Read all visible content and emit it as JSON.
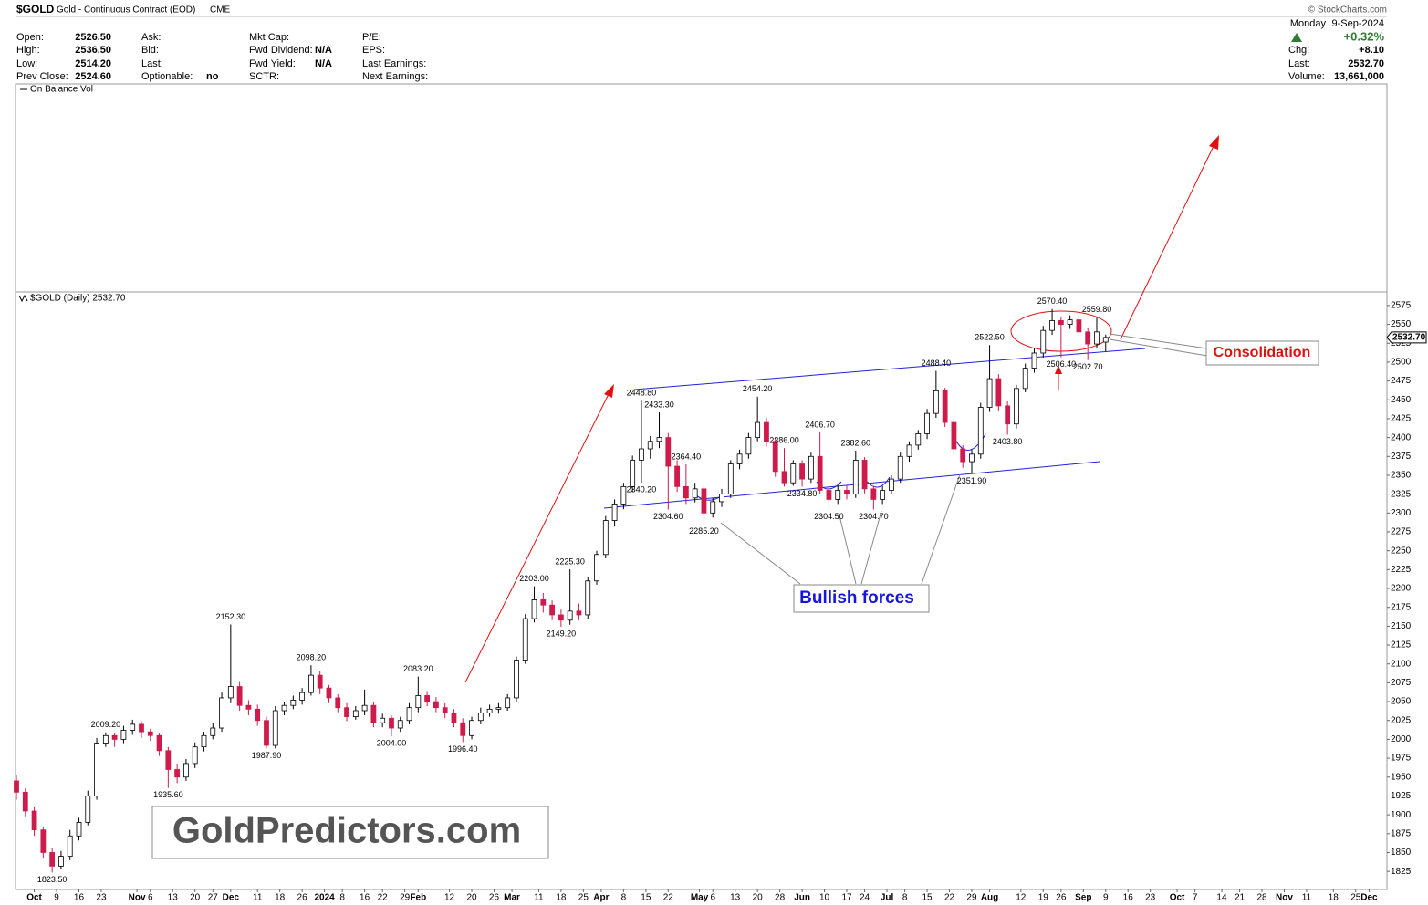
{
  "header": {
    "symbol": "$GOLD",
    "name": "Gold - Continuous Contract (EOD)",
    "exchange": "CME",
    "credit": "© StockCharts.com",
    "day": "Monday",
    "date": "9-Sep-2024",
    "change_pct": "+0.32%",
    "columns": [
      [
        {
          "label": "Open:",
          "value": "2526.50"
        },
        {
          "label": "High:",
          "value": "2536.50"
        },
        {
          "label": "Low:",
          "value": "2514.20"
        },
        {
          "label": "Prev Close:",
          "value": "2524.60"
        }
      ],
      [
        {
          "label": "Ask:"
        },
        {
          "label": "Bid:"
        },
        {
          "label": "Last:"
        },
        {
          "label": "Optionable:",
          "value": "no"
        }
      ],
      [
        {
          "label": "Mkt Cap:"
        },
        {
          "label": "Fwd Dividend:",
          "value": "N/A"
        },
        {
          "label": "Fwd Yield:",
          "value": "N/A"
        },
        {
          "label": "SCTR:"
        }
      ],
      [
        {
          "label": "P/E:"
        },
        {
          "label": "EPS:"
        },
        {
          "label": "Last Earnings:"
        },
        {
          "label": "Next Earnings:"
        }
      ]
    ],
    "right_fields": [
      {
        "label": "Chg:",
        "value": "+8.10"
      },
      {
        "label": "Last:",
        "value": "2532.70"
      },
      {
        "label": "Volume:",
        "value": "13,661,000"
      }
    ],
    "indicator": "On Balance Vol"
  },
  "chart_data": {
    "type": "candlestick",
    "series_label": "$GOLD (Daily) 2532.70",
    "last_price": {
      "value": 2532.7,
      "label": "2532.70"
    },
    "up_color": "#ffffff",
    "down_color": "#cf1b4c",
    "outline_color": "#000000",
    "grid": false,
    "xlim": [
      0,
      307
    ],
    "ylim": [
      1801,
      2593
    ],
    "yticks": [
      1825,
      1850,
      1875,
      1900,
      1925,
      1950,
      1975,
      2000,
      2025,
      2050,
      2075,
      2100,
      2125,
      2150,
      2175,
      2200,
      2225,
      2250,
      2275,
      2300,
      2325,
      2350,
      2375,
      2400,
      2425,
      2450,
      2475,
      2500,
      2525,
      2550,
      2575
    ],
    "xticks": [
      {
        "value": 4,
        "label": "Oct"
      },
      {
        "value": 9,
        "label": "9"
      },
      {
        "value": 14,
        "label": "16"
      },
      {
        "value": 19,
        "label": "23"
      },
      {
        "value": 27,
        "label": "Nov"
      },
      {
        "value": 30,
        "label": "6"
      },
      {
        "value": 35,
        "label": "13"
      },
      {
        "value": 40,
        "label": "20"
      },
      {
        "value": 44,
        "label": "27"
      },
      {
        "value": 48,
        "label": "Dec"
      },
      {
        "value": 54,
        "label": "11"
      },
      {
        "value": 59,
        "label": "18"
      },
      {
        "value": 64,
        "label": "26"
      },
      {
        "value": 69,
        "label": "2024"
      },
      {
        "value": 73,
        "label": "8"
      },
      {
        "value": 78,
        "label": "16"
      },
      {
        "value": 82,
        "label": "22"
      },
      {
        "value": 87,
        "label": "29"
      },
      {
        "value": 90,
        "label": "Feb"
      },
      {
        "value": 97,
        "label": "12"
      },
      {
        "value": 102,
        "label": "20"
      },
      {
        "value": 107,
        "label": "26"
      },
      {
        "value": 111,
        "label": "Mar"
      },
      {
        "value": 117,
        "label": "11"
      },
      {
        "value": 122,
        "label": "18"
      },
      {
        "value": 127,
        "label": "25"
      },
      {
        "value": 131,
        "label": "Apr"
      },
      {
        "value": 136,
        "label": "8"
      },
      {
        "value": 141,
        "label": "15"
      },
      {
        "value": 146,
        "label": "22"
      },
      {
        "value": 153,
        "label": "May"
      },
      {
        "value": 156,
        "label": "6"
      },
      {
        "value": 161,
        "label": "13"
      },
      {
        "value": 166,
        "label": "20"
      },
      {
        "value": 171,
        "label": "28"
      },
      {
        "value": 176,
        "label": "Jun"
      },
      {
        "value": 181,
        "label": "10"
      },
      {
        "value": 186,
        "label": "17"
      },
      {
        "value": 190,
        "label": "24"
      },
      {
        "value": 195,
        "label": "Jul"
      },
      {
        "value": 199,
        "label": "8"
      },
      {
        "value": 204,
        "label": "15"
      },
      {
        "value": 209,
        "label": "22"
      },
      {
        "value": 214,
        "label": "29"
      },
      {
        "value": 218,
        "label": "Aug"
      },
      {
        "value": 225,
        "label": "12"
      },
      {
        "value": 230,
        "label": "19"
      },
      {
        "value": 234,
        "label": "26"
      },
      {
        "value": 239,
        "label": "Sep"
      },
      {
        "value": 244,
        "label": "9"
      },
      {
        "value": 249,
        "label": "16"
      },
      {
        "value": 254,
        "label": "23"
      },
      {
        "value": 260,
        "label": "Oct"
      },
      {
        "value": 264,
        "label": "7"
      },
      {
        "value": 270,
        "label": "14"
      },
      {
        "value": 274,
        "label": "21"
      },
      {
        "value": 279,
        "label": "28"
      },
      {
        "value": 284,
        "label": "Nov"
      },
      {
        "value": 289,
        "label": "11"
      },
      {
        "value": 295,
        "label": "18"
      },
      {
        "value": 300,
        "label": "25"
      },
      {
        "value": 303,
        "label": "Dec"
      }
    ],
    "x": [
      0,
      2,
      4,
      6,
      8,
      10,
      12,
      14,
      16,
      18,
      20,
      22,
      24,
      26,
      28,
      30,
      32,
      34,
      36,
      38,
      40,
      42,
      44,
      46,
      48,
      50,
      52,
      54,
      56,
      58,
      60,
      62,
      64,
      66,
      68,
      70,
      72,
      74,
      76,
      78,
      80,
      82,
      84,
      86,
      88,
      90,
      92,
      94,
      96,
      98,
      100,
      102,
      104,
      106,
      108,
      110,
      112,
      114,
      116,
      118,
      120,
      122,
      124,
      126,
      128,
      130,
      132,
      134,
      136,
      138,
      140,
      142,
      144,
      146,
      148,
      150,
      152,
      154,
      156,
      158,
      160,
      162,
      164,
      166,
      168,
      170,
      172,
      174,
      176,
      178,
      180,
      182,
      184,
      186,
      188,
      190,
      192,
      194,
      196,
      198,
      200,
      202,
      204,
      206,
      208,
      210,
      212,
      214,
      216,
      218,
      220,
      222,
      224,
      226,
      228,
      230,
      232,
      234,
      236,
      238,
      240,
      242,
      244
    ],
    "open": [
      1945,
      1930,
      1905,
      1880,
      1850,
      1832,
      1845,
      1872,
      1890,
      1925,
      1995,
      2005,
      2000,
      2012,
      2020,
      2010,
      2005,
      1985,
      1960,
      1950,
      1968,
      1990,
      2005,
      2015,
      2055,
      2070,
      2045,
      2040,
      2025,
      1992,
      2038,
      2045,
      2052,
      2062,
      2085,
      2068,
      2055,
      2042,
      2030,
      2038,
      2045,
      2022,
      2028,
      2015,
      2025,
      2042,
      2058,
      2050,
      2042,
      2035,
      2022,
      2005,
      2025,
      2035,
      2040,
      2042,
      2055,
      2105,
      2160,
      2185,
      2178,
      2165,
      2158,
      2170,
      2165,
      2210,
      2245,
      2290,
      2312,
      2335,
      2370,
      2385,
      2395,
      2400,
      2362,
      2335,
      2320,
      2332,
      2300,
      2315,
      2325,
      2365,
      2378,
      2400,
      2420,
      2395,
      2355,
      2340,
      2365,
      2345,
      2375,
      2330,
      2318,
      2330,
      2325,
      2370,
      2332,
      2318,
      2330,
      2345,
      2375,
      2390,
      2405,
      2432,
      2462,
      2420,
      2385,
      2368,
      2378,
      2440,
      2478,
      2442,
      2418,
      2465,
      2492,
      2512,
      2542,
      2555,
      2550,
      2556,
      2540,
      2524,
      2526.5
    ],
    "high": [
      1952,
      1935,
      1910,
      1884,
      1856,
      1852,
      1880,
      1896,
      1932,
      2002,
      2009.2,
      2008,
      2018,
      2026,
      2024,
      2014,
      2008,
      1990,
      1968,
      1974,
      1996,
      2010,
      2022,
      2062,
      2152.3,
      2076,
      2052,
      2046,
      2030,
      2044,
      2050,
      2058,
      2068,
      2098.2,
      2090,
      2072,
      2060,
      2048,
      2044,
      2066,
      2050,
      2034,
      2032,
      2030,
      2048,
      2083.2,
      2064,
      2056,
      2048,
      2040,
      2028,
      2030,
      2042,
      2046,
      2048,
      2060,
      2110,
      2166,
      2203,
      2194,
      2184,
      2172,
      2225.3,
      2180,
      2215,
      2250,
      2296,
      2318,
      2340,
      2376,
      2448.8,
      2402,
      2433.3,
      2406,
      2370,
      2364.4,
      2340,
      2336,
      2320,
      2332,
      2370,
      2384,
      2406,
      2454.2,
      2426,
      2400,
      2386,
      2370,
      2370,
      2380,
      2406.7,
      2338,
      2336,
      2336,
      2382.6,
      2374,
      2336,
      2336,
      2350,
      2380,
      2395,
      2410,
      2438,
      2488.4,
      2466,
      2425,
      2390,
      2384,
      2446,
      2522.5,
      2484,
      2448,
      2470,
      2498,
      2518,
      2548,
      2570.4,
      2560,
      2562,
      2560,
      2546,
      2559.8,
      2536.5
    ],
    "low": [
      1920,
      1898,
      1872,
      1842,
      1823.5,
      1828,
      1840,
      1866,
      1886,
      1920,
      1990,
      1990,
      1995,
      2006,
      2002,
      1998,
      1978,
      1935.6,
      1942,
      1945,
      1962,
      1984,
      2000,
      2010,
      2048,
      2038,
      2032,
      2018,
      1987.9,
      1988,
      2032,
      2040,
      2046,
      2058,
      2060,
      2048,
      2036,
      2024,
      2026,
      2032,
      2016,
      2016,
      2004,
      2010,
      2020,
      2036,
      2044,
      2036,
      2028,
      2016,
      1996.4,
      2000,
      2020,
      2030,
      2034,
      2038,
      2050,
      2100,
      2155,
      2168,
      2158,
      2149.2,
      2152,
      2158,
      2160,
      2205,
      2240,
      2282,
      2305,
      2328,
      2340.2,
      2372,
      2386,
      2304.6,
      2328,
      2312,
      2314,
      2285.2,
      2294,
      2308,
      2320,
      2358,
      2372,
      2395,
      2388,
      2348,
      2335,
      2336,
      2334.8,
      2340,
      2325,
      2304.5,
      2312,
      2318,
      2320,
      2326,
      2304.7,
      2312,
      2325,
      2340,
      2368,
      2384,
      2398,
      2426,
      2414,
      2378,
      2360,
      2351.9,
      2372,
      2434,
      2436,
      2403.8,
      2412,
      2460,
      2486,
      2506,
      2536,
      2506.4,
      2544,
      2534,
      2502.7,
      2518,
      2514.2
    ],
    "close": [
      1930,
      1905,
      1880,
      1850,
      1832,
      1845,
      1872,
      1890,
      1925,
      1995,
      2005,
      2000,
      2012,
      2020,
      2010,
      2005,
      1985,
      1960,
      1950,
      1968,
      1990,
      2005,
      2015,
      2055,
      2070,
      2045,
      2040,
      2025,
      1992,
      2038,
      2045,
      2052,
      2062,
      2085,
      2068,
      2055,
      2042,
      2030,
      2038,
      2045,
      2022,
      2028,
      2015,
      2025,
      2042,
      2058,
      2050,
      2042,
      2035,
      2022,
      2005,
      2025,
      2035,
      2040,
      2042,
      2055,
      2105,
      2160,
      2185,
      2178,
      2165,
      2158,
      2170,
      2165,
      2210,
      2245,
      2290,
      2312,
      2335,
      2370,
      2385,
      2395,
      2400,
      2362,
      2335,
      2320,
      2332,
      2300,
      2315,
      2325,
      2365,
      2378,
      2400,
      2420,
      2395,
      2355,
      2340,
      2365,
      2345,
      2375,
      2330,
      2318,
      2330,
      2325,
      2370,
      2332,
      2318,
      2330,
      2345,
      2375,
      2390,
      2405,
      2432,
      2462,
      2420,
      2385,
      2368,
      2378,
      2440,
      2478,
      2442,
      2418,
      2465,
      2492,
      2512,
      2542,
      2555,
      2550,
      2556,
      2540,
      2524,
      2540,
      2532.7
    ],
    "annotations": [
      {
        "x": 8,
        "value": 1823.5,
        "label": "1823.50"
      },
      {
        "x": 20,
        "value": 2009.2,
        "label": "2009.20"
      },
      {
        "x": 34,
        "value": 1935.6,
        "label": "1935.60"
      },
      {
        "x": 48,
        "value": 2152.3,
        "label": "2152.30"
      },
      {
        "x": 56,
        "value": 1987.9,
        "label": "1987.90"
      },
      {
        "x": 66,
        "value": 2098.2,
        "label": "2098.20"
      },
      {
        "x": 84,
        "value": 2004,
        "label": "2004.00"
      },
      {
        "x": 90,
        "value": 2083.2,
        "label": "2083.20"
      },
      {
        "x": 100,
        "value": 1996.4,
        "label": "1996.40"
      },
      {
        "x": 116,
        "value": 2203,
        "label": "2203.00"
      },
      {
        "x": 122,
        "value": 2149.2,
        "label": "2149.20"
      },
      {
        "x": 124,
        "value": 2225.3,
        "label": "2225.30"
      },
      {
        "x": 140,
        "value": 2448.8,
        "label": "2448.80"
      },
      {
        "x": 140,
        "value": 2340.2,
        "label": "2340.20"
      },
      {
        "x": 144,
        "value": 2433.3,
        "label": "2433.30"
      },
      {
        "x": 146,
        "value": 2304.6,
        "label": "2304.60"
      },
      {
        "x": 150,
        "value": 2364.4,
        "label": "2364.40"
      },
      {
        "x": 154,
        "value": 2285.2,
        "label": "2285.20"
      },
      {
        "x": 166,
        "value": 2454.2,
        "label": "2454.20"
      },
      {
        "x": 172,
        "value": 2386,
        "label": "2386.00"
      },
      {
        "x": 176,
        "value": 2334.8,
        "label": "2334.80"
      },
      {
        "x": 180,
        "value": 2406.7,
        "label": "2406.70"
      },
      {
        "x": 182,
        "value": 2304.5,
        "label": "2304.50"
      },
      {
        "x": 188,
        "value": 2382.6,
        "label": "2382.60"
      },
      {
        "x": 192,
        "value": 2304.7,
        "label": "2304.70"
      },
      {
        "x": 206,
        "value": 2488.4,
        "label": "2488.40"
      },
      {
        "x": 214,
        "value": 2351.9,
        "label": "2351.90"
      },
      {
        "x": 218,
        "value": 2522.5,
        "label": "2522.50"
      },
      {
        "x": 222,
        "value": 2403.8,
        "label": "2403.80"
      },
      {
        "x": 232,
        "value": 2570.4,
        "label": "2570.40"
      },
      {
        "x": 234,
        "value": 2506.4,
        "label": "2506.40"
      },
      {
        "x": 240,
        "value": 2502.7,
        "label": "2502.70"
      },
      {
        "x": 242,
        "value": 2559.8,
        "label": "2559.80"
      }
    ],
    "texts": {
      "consolidation": "Consolidation",
      "bullish": "Bullish forces",
      "watermark": "GoldPredictors.com"
    }
  }
}
